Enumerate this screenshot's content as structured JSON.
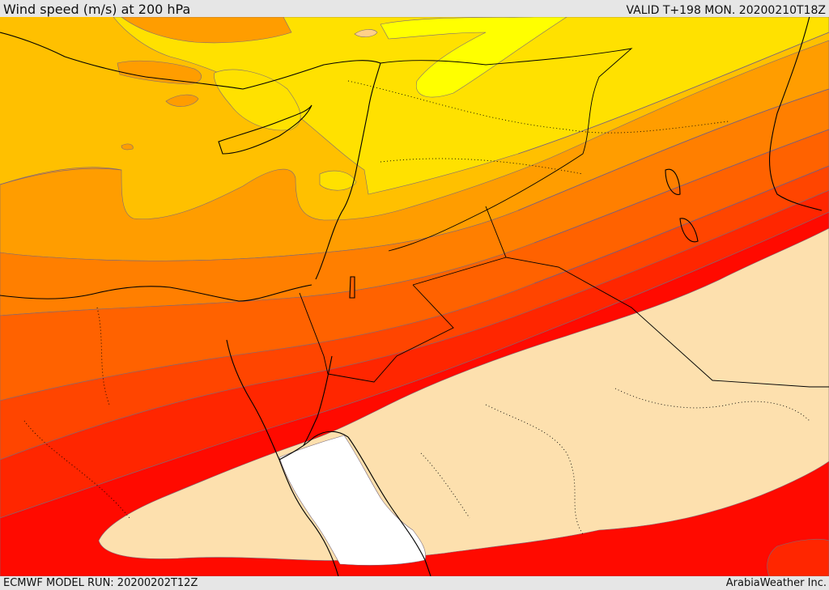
{
  "header": {
    "title": "Wind speed (m/s) at 200 hPa",
    "valid": "VALID T+198 MON. 20200210T18Z"
  },
  "footer": {
    "model_run": "ECMWF MODEL RUN: 20200202T12Z",
    "credit": "ArabiaWeather Inc."
  },
  "map": {
    "variable": "wind speed",
    "level_hpa": 200,
    "units": "m/s",
    "color_bands": [
      "#ffff00",
      "#ffe100",
      "#ffc000",
      "#ff9d00",
      "#ff7f00",
      "#ff6200",
      "#ff4500",
      "#ff2600",
      "#ff0a00",
      "#fde0ae",
      "#ffffff"
    ],
    "line_colors": {
      "contour": "#6a5a8c",
      "coastline": "#000000",
      "borders": "#000000"
    }
  }
}
